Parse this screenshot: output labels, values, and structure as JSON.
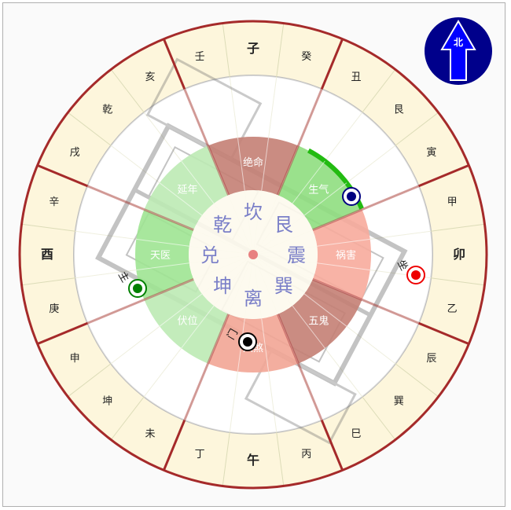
{
  "compass": {
    "mountains": [
      "子",
      "癸",
      "丑",
      "艮",
      "寅",
      "甲",
      "卯",
      "乙",
      "辰",
      "巽",
      "巳",
      "丙",
      "午",
      "丁",
      "未",
      "坤",
      "申",
      "庚",
      "酉",
      "辛",
      "戌",
      "乾",
      "亥",
      "壬"
    ],
    "cardinal_mountains": [
      "子",
      "卯",
      "午",
      "酉"
    ],
    "trigrams": [
      "坎",
      "艮",
      "震",
      "巽",
      "离",
      "坤",
      "兑",
      "乾"
    ],
    "sectors": [
      {
        "label": "绝命",
        "color": "#c47f74"
      },
      {
        "label": "生气",
        "color": "#8fde80"
      },
      {
        "label": "祸害",
        "color": "#f7ab9c"
      },
      {
        "label": "五鬼",
        "color": "#c47f74"
      },
      {
        "label": "六煞",
        "color": "#f2a595"
      },
      {
        "label": "伏位",
        "color": "#bdeab4"
      },
      {
        "label": "天医",
        "color": "#9fe492"
      },
      {
        "label": "延年",
        "color": "#bdeab4"
      }
    ],
    "ring_color": "#fdf6dc",
    "boundary_color": "#a52a2a",
    "center_color": "#fdfaee",
    "trigram_text_color": "#7a7fc8"
  },
  "north_badge": {
    "label": "北",
    "color": "#00008b",
    "arrow_color": "#0000ff"
  },
  "markers": [
    {
      "label": "坐",
      "color": "#ee0000"
    },
    {
      "label": "主",
      "color": "#008000"
    },
    {
      "label": "门",
      "color": "#000000"
    },
    {
      "label": "",
      "color": "#000080"
    }
  ]
}
